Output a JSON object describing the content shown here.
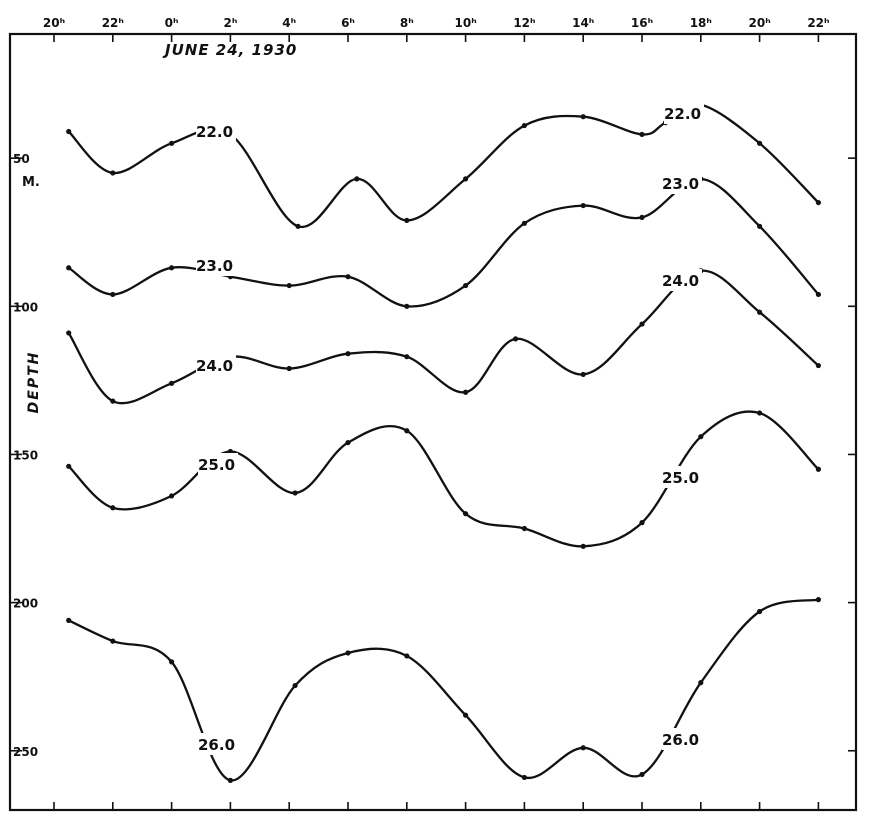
{
  "chart_data": {
    "type": "line",
    "title": "JUNE 24, 1930",
    "ylabel": "DEPTH",
    "y_unit": "M.",
    "y_reversed": true,
    "ylim": [
      0,
      265
    ],
    "xlim": [
      19,
      45
    ],
    "x_ticks": [
      20,
      22,
      24,
      26,
      28,
      30,
      32,
      34,
      36,
      38,
      40,
      42,
      44,
      46
    ],
    "x_tick_labels": [
      "20ʰ",
      "22ʰ",
      "0ʰ",
      "2ʰ",
      "4ʰ",
      "6ʰ",
      "8ʰ",
      "10ʰ",
      "12ʰ",
      "14ʰ",
      "16ʰ",
      "18ʰ",
      "20ʰ",
      "22ʰ"
    ],
    "y_ticks": [
      50,
      100,
      150,
      200,
      250
    ],
    "y_tick_labels": [
      "50",
      "100",
      "150",
      "200",
      "250"
    ],
    "series": [
      {
        "name": "22.0",
        "x": [
          20.5,
          22,
          24,
          26,
          28.3,
          30.3,
          32,
          34,
          36,
          38,
          40,
          40.8,
          42,
          44,
          46
        ],
        "y": [
          41,
          55,
          45,
          42,
          73,
          57,
          71,
          57,
          39,
          36,
          42,
          38,
          32,
          45,
          65
        ]
      },
      {
        "name": "23.0",
        "x": [
          20.5,
          22,
          24,
          26,
          28,
          30,
          32,
          34,
          36,
          38,
          40,
          42,
          44,
          46
        ],
        "y": [
          87,
          96,
          87,
          90,
          93,
          90,
          100,
          93,
          72,
          66,
          70,
          57,
          73,
          96
        ]
      },
      {
        "name": "24.0",
        "x": [
          20.5,
          22,
          24,
          26,
          28,
          30,
          32,
          34,
          35.7,
          38,
          40,
          42,
          44,
          46
        ],
        "y": [
          109,
          132,
          126,
          117,
          121,
          116,
          117,
          129,
          111,
          123,
          106,
          88,
          102,
          120
        ]
      },
      {
        "name": "25.0",
        "x": [
          20.5,
          22,
          24,
          26,
          28.2,
          30,
          32,
          34,
          36,
          38,
          40,
          42,
          44,
          46
        ],
        "y": [
          154,
          168,
          164,
          149,
          163,
          146,
          142,
          170,
          175,
          181,
          173,
          144,
          136,
          155
        ]
      },
      {
        "name": "26.0",
        "x": [
          20.5,
          22,
          24,
          26,
          28.2,
          30,
          32,
          34,
          36,
          38,
          40,
          42,
          44,
          46
        ],
        "y": [
          206,
          213,
          220,
          260,
          228,
          217,
          218,
          238,
          259,
          249,
          258,
          227,
          203,
          199
        ]
      }
    ],
    "annotations": [
      "22.0",
      "22.0",
      "23.0",
      "23.0",
      "24.0",
      "24.0",
      "25.0",
      "25.0",
      "26.0",
      "26.0"
    ]
  }
}
